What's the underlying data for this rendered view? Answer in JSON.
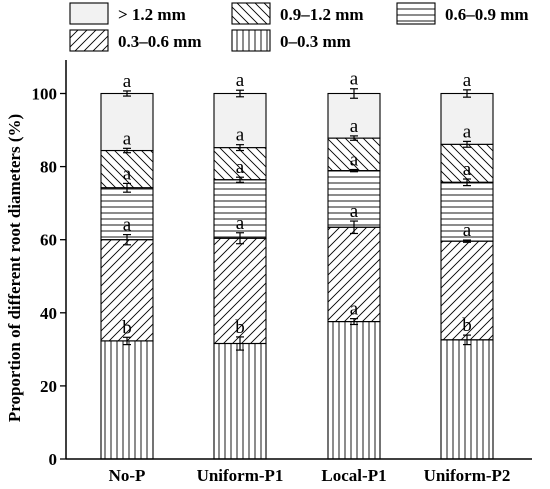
{
  "chart_data": {
    "type": "bar",
    "stacked": true,
    "categories": [
      "No-P",
      "Uniform-P1",
      "Local-P1",
      "Uniform-P2"
    ],
    "ylabel": "Proportion of different root diameters (%)",
    "xlabel": "",
    "ylim": [
      0,
      100
    ],
    "yticks": [
      0,
      20,
      40,
      60,
      80,
      100
    ],
    "grid": false,
    "legend_position": "top",
    "series": [
      {
        "name": "0–0.3 mm",
        "pattern": "vertical",
        "values": [
          32.3,
          31.6,
          37.6,
          32.6
        ],
        "errors": [
          1.0,
          1.8,
          0.8,
          1.3
        ],
        "labels": [
          "b",
          "b",
          "a",
          "b"
        ]
      },
      {
        "name": "0.3–0.6 mm",
        "pattern": "diagonal-forward",
        "values": [
          27.7,
          28.8,
          25.8,
          27.0
        ],
        "errors": [
          1.4,
          1.5,
          1.7,
          0.3
        ],
        "labels": [
          "a",
          "a",
          "a",
          "a"
        ]
      },
      {
        "name": "0.6–0.9 mm",
        "pattern": "horizontal",
        "values": [
          14.2,
          16.0,
          15.5,
          16.1
        ],
        "errors": [
          1.2,
          0.7,
          0.3,
          0.9
        ],
        "labels": [
          "a",
          "a",
          "a",
          "a"
        ]
      },
      {
        "name": "0.9–1.2 mm",
        "pattern": "diagonal-backward",
        "values": [
          10.2,
          8.8,
          8.9,
          10.4
        ],
        "errors": [
          0.6,
          0.8,
          0.6,
          0.8
        ],
        "labels": [
          "a",
          "a",
          "a",
          "a"
        ]
      },
      {
        "name": "> 1.2 mm",
        "pattern": "solid-light",
        "values": [
          15.6,
          14.8,
          12.2,
          13.9
        ],
        "errors": [
          0.7,
          0.9,
          1.3,
          1.0
        ],
        "labels": [
          "a",
          "a",
          "a",
          "a"
        ]
      }
    ],
    "legend_order": [
      "> 1.2 mm",
      "0.9–1.2 mm",
      "0.6–0.9 mm",
      "0.3–0.6 mm",
      "0–0.3 mm"
    ],
    "colors": {
      "fill_light": "#f2f2f2",
      "stroke": "#000000"
    }
  }
}
